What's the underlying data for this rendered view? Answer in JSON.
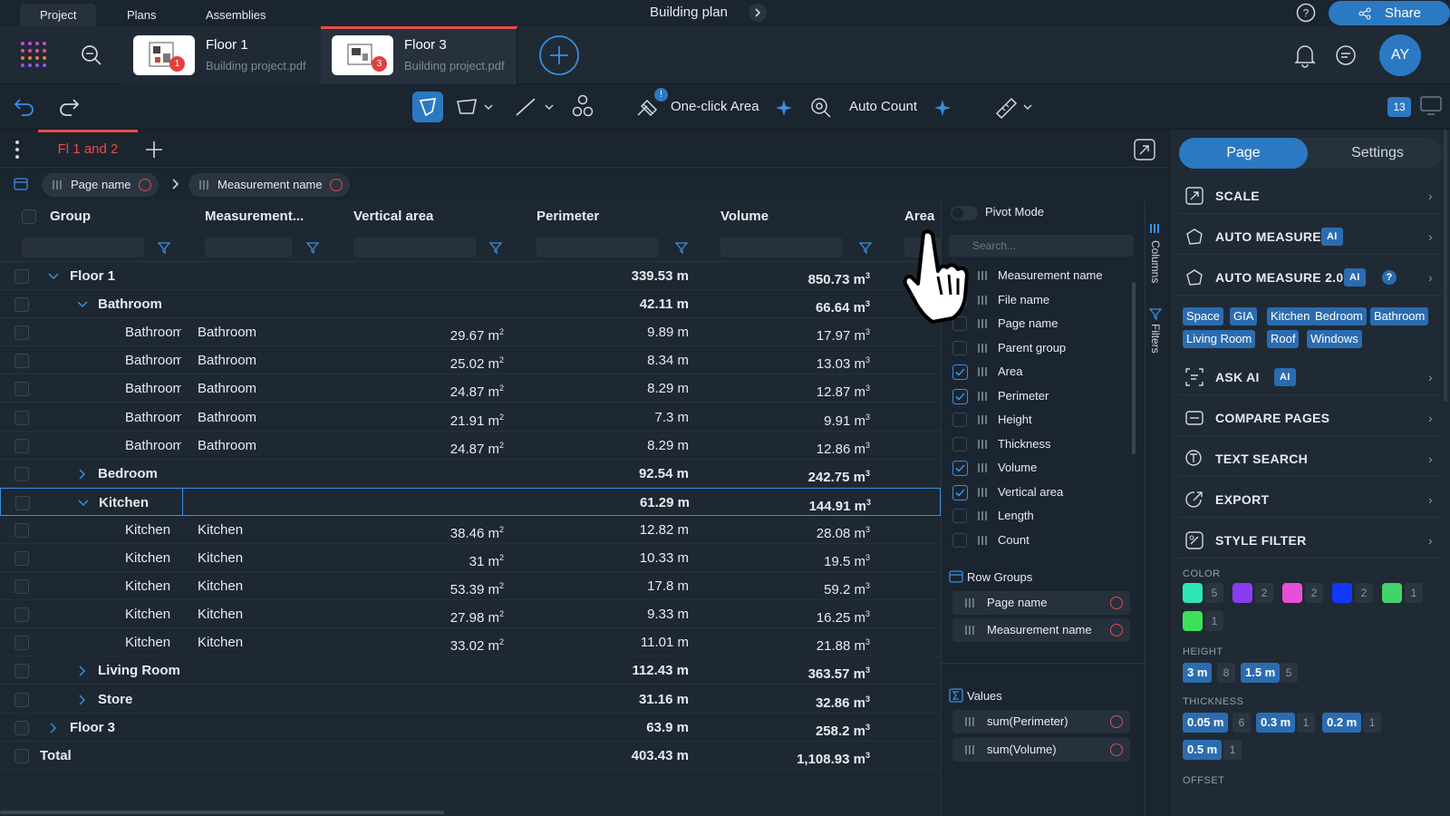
{
  "nav": {
    "tabs": [
      "Project",
      "Plans",
      "Assemblies"
    ],
    "active": "Project",
    "doc_title": "Building plan",
    "share": "Share",
    "avatar": "AY"
  },
  "files": [
    {
      "title": "Floor 1",
      "subtitle": "Building project.pdf",
      "badge": "1"
    },
    {
      "title": "Floor 3",
      "subtitle": "Building project.pdf",
      "badge": "3"
    }
  ],
  "toolbar": {
    "one_click": "One-click Area",
    "auto_count": "Auto Count",
    "counter": "13",
    "alert": "!"
  },
  "sheet": {
    "tab": "Fl 1 and 2"
  },
  "groupby": {
    "chips": [
      "Page name",
      "Measurement name"
    ]
  },
  "grid": {
    "headers": [
      "Group",
      "Measurement...",
      "Vertical area",
      "Perimeter",
      "Volume",
      "Area"
    ],
    "rows": [
      {
        "level": 0,
        "expand": "down",
        "group": "Floor 1",
        "meas": "",
        "va": "",
        "per": "339.53 m",
        "vol": "850.73 m",
        "bold": true
      },
      {
        "level": 1,
        "expand": "down",
        "group": "Bathroom",
        "meas": "",
        "va": "",
        "per": "42.11 m",
        "vol": "66.64 m",
        "bold": true
      },
      {
        "level": 2,
        "expand": "",
        "group": "Bathroom",
        "meas": "Bathroom",
        "va": "29.67 m",
        "per": "9.89 m",
        "vol": "17.97 m",
        "bold": false
      },
      {
        "level": 2,
        "expand": "",
        "group": "Bathroom",
        "meas": "Bathroom",
        "va": "25.02 m",
        "per": "8.34 m",
        "vol": "13.03 m",
        "bold": false
      },
      {
        "level": 2,
        "expand": "",
        "group": "Bathroom",
        "meas": "Bathroom",
        "va": "24.87 m",
        "per": "8.29 m",
        "vol": "12.87 m",
        "bold": false
      },
      {
        "level": 2,
        "expand": "",
        "group": "Bathroom",
        "meas": "Bathroom",
        "va": "21.91 m",
        "per": "7.3 m",
        "vol": "9.91 m",
        "bold": false
      },
      {
        "level": 2,
        "expand": "",
        "group": "Bathroom",
        "meas": "Bathroom",
        "va": "24.87 m",
        "per": "8.29 m",
        "vol": "12.86 m",
        "bold": false
      },
      {
        "level": 1,
        "expand": "right",
        "group": "Bedroom",
        "meas": "",
        "va": "",
        "per": "92.54 m",
        "vol": "242.75 m",
        "bold": true
      },
      {
        "level": 1,
        "expand": "down",
        "group": "Kitchen",
        "meas": "",
        "va": "",
        "per": "61.29 m",
        "vol": "144.91 m",
        "bold": true,
        "selected": true
      },
      {
        "level": 2,
        "expand": "",
        "group": "Kitchen",
        "meas": "Kitchen",
        "va": "38.46 m",
        "per": "12.82 m",
        "vol": "28.08 m",
        "bold": false
      },
      {
        "level": 2,
        "expand": "",
        "group": "Kitchen",
        "meas": "Kitchen",
        "va": "31 m",
        "per": "10.33 m",
        "vol": "19.5 m",
        "bold": false
      },
      {
        "level": 2,
        "expand": "",
        "group": "Kitchen",
        "meas": "Kitchen",
        "va": "53.39 m",
        "per": "17.8 m",
        "vol": "59.2 m",
        "bold": false
      },
      {
        "level": 2,
        "expand": "",
        "group": "Kitchen",
        "meas": "Kitchen",
        "va": "27.98 m",
        "per": "9.33 m",
        "vol": "16.25 m",
        "bold": false
      },
      {
        "level": 2,
        "expand": "",
        "group": "Kitchen",
        "meas": "Kitchen",
        "va": "33.02 m",
        "per": "11.01 m",
        "vol": "21.88 m",
        "bold": false
      },
      {
        "level": 1,
        "expand": "right",
        "group": "Living Room",
        "meas": "",
        "va": "",
        "per": "112.43 m",
        "vol": "363.57 m",
        "bold": true
      },
      {
        "level": 1,
        "expand": "right",
        "group": "Store",
        "meas": "",
        "va": "",
        "per": "31.16 m",
        "vol": "32.86 m",
        "bold": true
      },
      {
        "level": 0,
        "expand": "right",
        "group": "Floor 3",
        "meas": "",
        "va": "",
        "per": "63.9 m",
        "vol": "258.2 m",
        "bold": true
      },
      {
        "level": -1,
        "expand": "",
        "group": "Total",
        "meas": "",
        "va": "",
        "per": "403.43 m",
        "vol": "1,108.93 m",
        "bold": true
      }
    ]
  },
  "pivot": {
    "mode_label": "Pivot Mode",
    "search_placeholder": "Search...",
    "columns": [
      {
        "name": "Measurement name",
        "checked": false
      },
      {
        "name": "File name",
        "checked": false
      },
      {
        "name": "Page name",
        "checked": false
      },
      {
        "name": "Parent group",
        "checked": false
      },
      {
        "name": "Area",
        "checked": true
      },
      {
        "name": "Perimeter",
        "checked": true
      },
      {
        "name": "Height",
        "checked": false
      },
      {
        "name": "Thickness",
        "checked": false
      },
      {
        "name": "Volume",
        "checked": true
      },
      {
        "name": "Vertical area",
        "checked": true
      },
      {
        "name": "Length",
        "checked": false
      },
      {
        "name": "Count",
        "checked": false
      }
    ],
    "row_groups_label": "Row Groups",
    "row_groups": [
      "Page name",
      "Measurement name"
    ],
    "values_label": "Values",
    "values": [
      "sum(Perimeter)",
      "sum(Volume)"
    ],
    "vtab_columns": "Columns",
    "vtab_filters": "Filters"
  },
  "right": {
    "tabs": [
      "Page",
      "Settings"
    ],
    "items": [
      "SCALE",
      "AUTO MEASURE",
      "AUTO MEASURE 2.0",
      "ASK AI",
      "COMPARE PAGES",
      "TEXT SEARCH",
      "EXPORT",
      "STYLE FILTER"
    ],
    "ai_badge": "AI",
    "help": "?",
    "tags": [
      "Space",
      "GIA",
      "Kitchen",
      "Bedroom",
      "Bathroom",
      "Living Room",
      "Roof",
      "Windows"
    ],
    "color_label": "COLOR",
    "colors": [
      {
        "hex": "#2ee6b5",
        "count": "5"
      },
      {
        "hex": "#8a3cf2",
        "count": "2"
      },
      {
        "hex": "#e84fd8",
        "count": "2"
      },
      {
        "hex": "#1238ff",
        "count": "2"
      },
      {
        "hex": "#42d46b",
        "count": "1"
      },
      {
        "hex": "#3ee05a",
        "count": "1"
      }
    ],
    "height_label": "HEIGHT",
    "heights": [
      {
        "v": "3 m",
        "c": "8"
      },
      {
        "v": "1.5 m",
        "c": "5"
      }
    ],
    "thickness_label": "THICKNESS",
    "thicknesses": [
      {
        "v": "0.05 m",
        "c": "6"
      },
      {
        "v": "0.3 m",
        "c": "1"
      },
      {
        "v": "0.2 m",
        "c": "1"
      },
      {
        "v": "0.5 m",
        "c": "1"
      }
    ],
    "offset_label": "OFFSET"
  },
  "accent": "#2b79c2",
  "danger": "#e94b4b"
}
